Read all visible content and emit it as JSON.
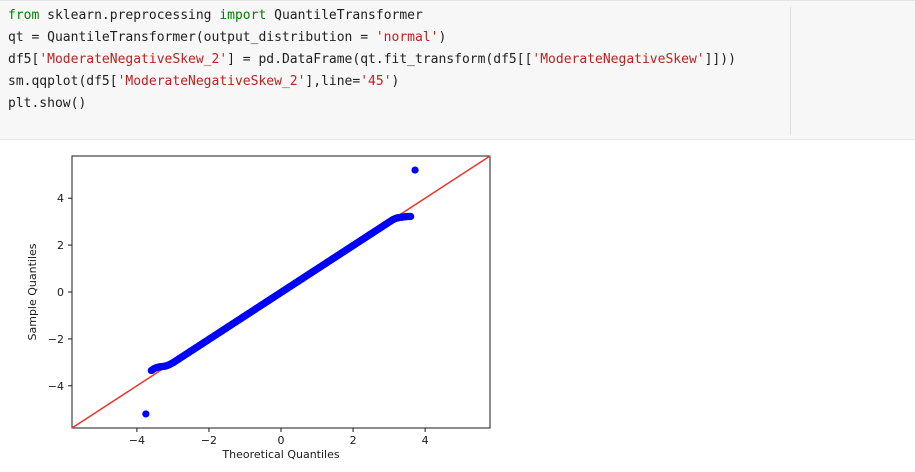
{
  "code_cell": {
    "lines": [
      [
        {
          "t": "from",
          "k": "kw"
        },
        {
          "t": " sklearn.preprocessing ",
          "k": ""
        },
        {
          "t": "import",
          "k": "kw"
        },
        {
          "t": " QuantileTransformer",
          "k": ""
        }
      ],
      [
        {
          "t": "qt = QuantileTransformer(output_distribution = ",
          "k": ""
        },
        {
          "t": "'normal'",
          "k": "str"
        },
        {
          "t": ")",
          "k": ""
        }
      ],
      [
        {
          "t": "df5[",
          "k": ""
        },
        {
          "t": "'ModerateNegativeSkew_2'",
          "k": "str"
        },
        {
          "t": "] = pd.DataFrame(qt.fit_transform(df5[[",
          "k": ""
        },
        {
          "t": "'ModerateNegativeSkew'",
          "k": "str"
        },
        {
          "t": "]]))",
          "k": ""
        }
      ],
      [
        {
          "t": "sm.qqplot(df5[",
          "k": ""
        },
        {
          "t": "'ModerateNegativeSkew_2'",
          "k": "str"
        },
        {
          "t": "],line=",
          "k": ""
        },
        {
          "t": "'45'",
          "k": "str"
        },
        {
          "t": ")",
          "k": ""
        }
      ],
      [
        {
          "t": "plt.show()",
          "k": ""
        }
      ]
    ],
    "colors": {
      "keyword": "#008000",
      "string": "#ba2121",
      "text": "#1f1f1f",
      "background": "#f7f7f7"
    }
  },
  "chart_data": {
    "type": "scatter",
    "title": "",
    "xlabel": "Theoretical Quantiles",
    "ylabel": "Sample Quantiles",
    "xlim": [
      -5.8,
      5.8
    ],
    "ylim": [
      -5.8,
      5.8
    ],
    "xticks": [
      -4,
      -2,
      0,
      2,
      4
    ],
    "yticks": [
      -4,
      -2,
      0,
      2,
      4
    ],
    "xtick_labels": [
      "−4",
      "−2",
      "0",
      "2",
      "4"
    ],
    "ytick_labels": [
      "−4",
      "−2",
      "0",
      "2",
      "4"
    ],
    "grid": false,
    "reference_line": {
      "type": "45-degree",
      "color": "#e8382d"
    },
    "series": [
      {
        "marker_color": "#0000ff",
        "points": [
          {
            "x": -3.75,
            "y": -5.2
          },
          {
            "x": -3.6,
            "y": -3.35
          },
          {
            "x": -3.5,
            "y": -3.25
          },
          {
            "x": -3.4,
            "y": -3.2
          },
          {
            "x": -3.3,
            "y": -3.18
          },
          {
            "x": -3.2,
            "y": -3.16
          },
          {
            "x": -3.1,
            "y": -3.1
          },
          {
            "x": -3.0,
            "y": -3.02
          },
          {
            "x": -2.9,
            "y": -2.92
          },
          {
            "x": -2.8,
            "y": -2.82
          },
          {
            "x": -2.7,
            "y": -2.72
          },
          {
            "x": -2.6,
            "y": -2.62
          },
          {
            "x": -2.5,
            "y": -2.52
          },
          {
            "x": -2.4,
            "y": -2.42
          },
          {
            "x": -2.3,
            "y": -2.32
          },
          {
            "x": -2.2,
            "y": -2.22
          },
          {
            "x": -2.1,
            "y": -2.12
          },
          {
            "x": -2.0,
            "y": -2.02
          },
          {
            "x": -1.9,
            "y": -1.92
          },
          {
            "x": -1.8,
            "y": -1.82
          },
          {
            "x": -1.7,
            "y": -1.72
          },
          {
            "x": -1.6,
            "y": -1.62
          },
          {
            "x": -1.5,
            "y": -1.52
          },
          {
            "x": -1.4,
            "y": -1.42
          },
          {
            "x": -1.3,
            "y": -1.32
          },
          {
            "x": -1.2,
            "y": -1.22
          },
          {
            "x": -1.1,
            "y": -1.12
          },
          {
            "x": -1.0,
            "y": -1.02
          },
          {
            "x": -0.9,
            "y": -0.92
          },
          {
            "x": -0.8,
            "y": -0.82
          },
          {
            "x": -0.7,
            "y": -0.72
          },
          {
            "x": -0.6,
            "y": -0.62
          },
          {
            "x": -0.5,
            "y": -0.52
          },
          {
            "x": -0.4,
            "y": -0.42
          },
          {
            "x": -0.3,
            "y": -0.32
          },
          {
            "x": -0.2,
            "y": -0.22
          },
          {
            "x": -0.1,
            "y": -0.12
          },
          {
            "x": 0.0,
            "y": -0.02
          },
          {
            "x": 0.1,
            "y": 0.08
          },
          {
            "x": 0.2,
            "y": 0.18
          },
          {
            "x": 0.3,
            "y": 0.28
          },
          {
            "x": 0.4,
            "y": 0.38
          },
          {
            "x": 0.5,
            "y": 0.48
          },
          {
            "x": 0.6,
            "y": 0.58
          },
          {
            "x": 0.7,
            "y": 0.68
          },
          {
            "x": 0.8,
            "y": 0.78
          },
          {
            "x": 0.9,
            "y": 0.88
          },
          {
            "x": 1.0,
            "y": 0.98
          },
          {
            "x": 1.1,
            "y": 1.08
          },
          {
            "x": 1.2,
            "y": 1.18
          },
          {
            "x": 1.3,
            "y": 1.28
          },
          {
            "x": 1.4,
            "y": 1.38
          },
          {
            "x": 1.5,
            "y": 1.48
          },
          {
            "x": 1.6,
            "y": 1.58
          },
          {
            "x": 1.7,
            "y": 1.68
          },
          {
            "x": 1.8,
            "y": 1.78
          },
          {
            "x": 1.9,
            "y": 1.88
          },
          {
            "x": 2.0,
            "y": 1.98
          },
          {
            "x": 2.1,
            "y": 2.08
          },
          {
            "x": 2.2,
            "y": 2.18
          },
          {
            "x": 2.3,
            "y": 2.28
          },
          {
            "x": 2.4,
            "y": 2.38
          },
          {
            "x": 2.5,
            "y": 2.48
          },
          {
            "x": 2.6,
            "y": 2.58
          },
          {
            "x": 2.7,
            "y": 2.68
          },
          {
            "x": 2.8,
            "y": 2.78
          },
          {
            "x": 2.9,
            "y": 2.88
          },
          {
            "x": 3.0,
            "y": 2.98
          },
          {
            "x": 3.1,
            "y": 3.08
          },
          {
            "x": 3.2,
            "y": 3.15
          },
          {
            "x": 3.3,
            "y": 3.18
          },
          {
            "x": 3.4,
            "y": 3.2
          },
          {
            "x": 3.5,
            "y": 3.22
          },
          {
            "x": 3.6,
            "y": 3.22
          },
          {
            "x": 3.72,
            "y": 5.2
          }
        ]
      }
    ]
  }
}
